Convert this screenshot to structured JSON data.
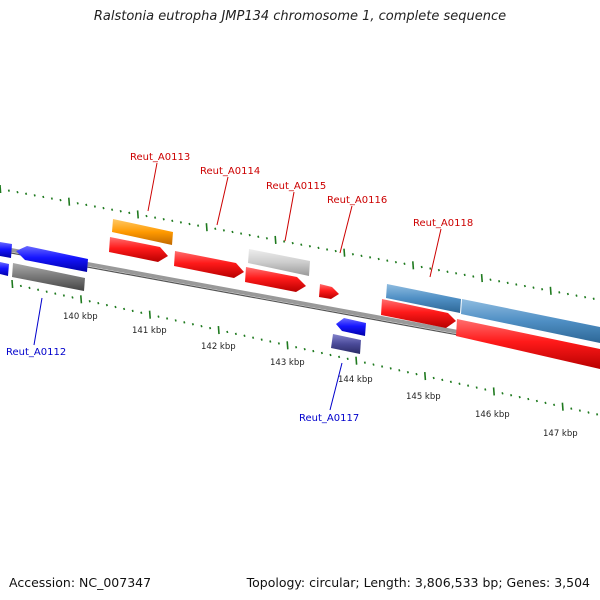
{
  "title": "Ralstonia eutropha JMP134 chromosome 1, complete sequence",
  "footer": {
    "accession": "Accession: NC_007347",
    "summary": "Topology: circular; Length: 3,806,533 bp; Genes: 3,504"
  },
  "ruler": {
    "labels": [
      "140 kbp",
      "141 kbp",
      "142 kbp",
      "143 kbp",
      "144 kbp",
      "145 kbp",
      "146 kbp",
      "147 kbp"
    ]
  },
  "gene_labels": {
    "forward": [
      "Reut_A0113",
      "Reut_A0114",
      "Reut_A0115",
      "Reut_A0116",
      "Reut_A0118"
    ],
    "reverse": [
      "Reut_A0112",
      "Reut_A0117"
    ]
  },
  "colors": {
    "forward_label": "#cc0000",
    "reverse_label": "#0000cc",
    "tick": "#1f7a1f",
    "backbone": "#888888",
    "cds_red": "#ff1a1a",
    "blue_gene": "#1515ff",
    "gray_gene": "#777777",
    "orange_gene": "#ff9a00",
    "lightgray_gene": "#cccccc",
    "steelblue_gene": "#4f8fc4",
    "purple_gene": "#4a4a99"
  }
}
